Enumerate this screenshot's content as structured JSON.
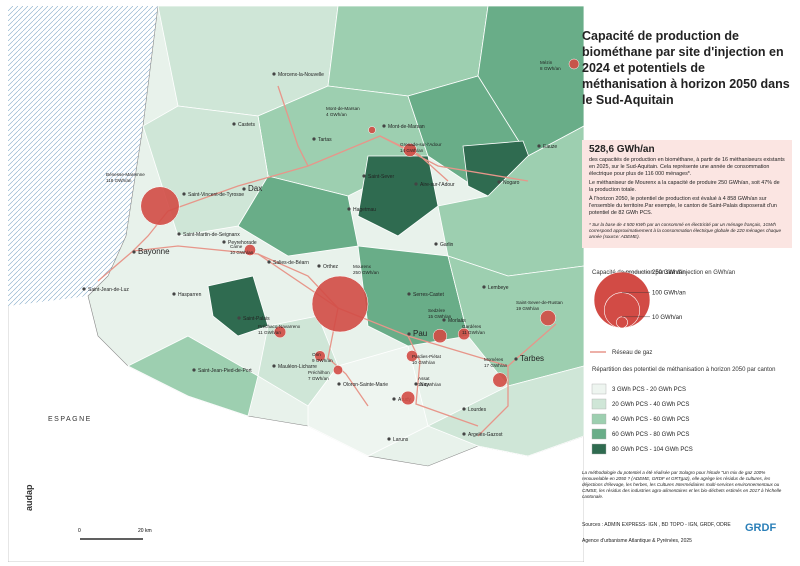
{
  "title": "Capacité de production de biométhane par site d'injection en 2024 et potentiels de méthanisation à horizon 2050 dans le Sud-Aquitain",
  "summary": {
    "headline": "528,6 GWh/an",
    "paragraphs": [
      "des capacités de production en biométhane, à partir de 16 méthaniseurs existants en 2025, sur le Sud-Aquitain. Cela représente une année de consommation électrique pour plus de 116 000 ménages*.",
      "Le méthaniseur de Mourenx a la capacité de produire 250 GWh/an, soit 47% de la production totale.",
      "À l'horizon 2050, le potentiel de production est évalué à 4 858 GWh/an sur l'ensemble du territoire.Par exemple, le canton de Saint-Palais disposerait d'un potentiel de 82 GWh PCS."
    ],
    "footnote": "* Sur la base de 4 500 KWh par an consommé en électricité par un ménage français, 1GWh correspond approximativement à la consommation électrique globale de 220 ménages chaque année (source: ADEME)."
  },
  "legend": {
    "size_title": "Capacité de production par site d'injection en GWh/an",
    "size_labels": [
      {
        "value": 250,
        "label": "250 GWh/an"
      },
      {
        "value": 100,
        "label": "100 GWh/an"
      },
      {
        "value": 10,
        "label": "10 GWh/an"
      }
    ],
    "network": "Réseau de gaz",
    "choropleth_title": "Répartition des potentiel de méthanisation à horizon 2050 par canton",
    "classes": [
      "3 GWh PCS - 20 GWh PCS",
      "20 GWh PCS - 40 GWh PCS",
      "40 GWh PCS - 60 GWh PCS",
      "60 GWh PCS - 80 GWh PCS",
      "80 GWh PCS - 104 GWh PCS"
    ],
    "class_colors": [
      "#eef5f0",
      "#cfe6d7",
      "#9dcfb0",
      "#69ad88",
      "#2f6b50"
    ]
  },
  "methodology": "La méthodologie du potentiel a été réalisée par Solagro pour l'étude \"Un mix de gaz 100% renouvelable en 2050 ? (ADEME, GRDF et GRTgaz), elle agrège les résidus de cultures, les déjections d'élevage, les herbes, les Cultures Intermédiaires multi-services environnementaux ou CIMSE, les résidus des industries agro-alimentaires et les bio-déchets estimés en 2017 à l'échelle cantonale.",
  "sources": "Sources : ADMIN EXPRESS- IGN , BD TOPO - IGN, GRDF, ODRE",
  "agency": "Agence d'urbanisme Atlantique & Pyrénées, 2025",
  "logos": [
    "audap",
    "GRDF"
  ],
  "map": {
    "country": "ESPAGNE",
    "scale": [
      "0",
      "20 km"
    ],
    "places": [
      "Morcenx-la-Nouvelle",
      "Castets",
      "Mont-de-Marsan",
      "Tartas",
      "Saint-Sever",
      "Aire-sur-l'Adour",
      "Nogaro",
      "Eauze",
      "Hagetmau",
      "Dax",
      "Saint-Vincent-de-Tyrosse",
      "Saint-Martin-de-Seignanx",
      "Peyrehorade",
      "Bayonne",
      "Saint-Jean-de-Luz",
      "Hasparren",
      "Salies-de-Béarn",
      "Orthez",
      "Garlin",
      "Lembeye",
      "Saint-Palais",
      "Mauléon-Licharre",
      "Saint-Jean-Pied-de-Port",
      "Oloron-Sainte-Marie",
      "Pau",
      "Serres-Castet",
      "Morlaàs",
      "Nay",
      "Arudy",
      "Laruns",
      "Tarbes",
      "Lourdes",
      "Argelès-Gazost"
    ],
    "sites": [
      {
        "name": "Bénesse-Maremne",
        "capacity": 118,
        "capacity_label": "118 GWh/an"
      },
      {
        "name": "Mourenx",
        "capacity": 250,
        "capacity_label": "250 GWh/an"
      },
      {
        "name": "Mont-de-Marsan",
        "capacity": 4,
        "capacity_label": "4 GWh/an"
      },
      {
        "name": "Grenade-sur-l'Adour",
        "capacity": 14,
        "capacity_label": "14 GWh/an"
      },
      {
        "name": "Came",
        "capacity": 10,
        "capacity_label": "10 GWh/an"
      },
      {
        "name": "Préchacq-Navarrenx",
        "capacity": 11,
        "capacity_label": "11 GWh/an"
      },
      {
        "name": "Orin",
        "capacity": 9,
        "capacity_label": "9 GWh/an"
      },
      {
        "name": "Préchilhon",
        "capacity": 7,
        "capacity_label": "7 GWh/an"
      },
      {
        "name": "Pardies-Piétat",
        "capacity": 10,
        "capacity_label": "10 GWh/an"
      },
      {
        "name": "Assat",
        "capacity": 15,
        "capacity_label": "15 GWh/an"
      },
      {
        "name": "Momères",
        "capacity": 17,
        "capacity_label": "17 GWh/an"
      },
      {
        "name": "Saint-Sever-de-Rustan",
        "capacity": 19,
        "capacity_label": "19 GWh/an"
      },
      {
        "name": "Gardères",
        "capacity": 11,
        "capacity_label": "11 GWh/an"
      },
      {
        "name": "Sedzère",
        "capacity": 15,
        "capacity_label": "15 GWh/an"
      },
      {
        "name": "Mézin",
        "capacity": 8,
        "capacity_label": "8 GWh/an"
      }
    ]
  }
}
